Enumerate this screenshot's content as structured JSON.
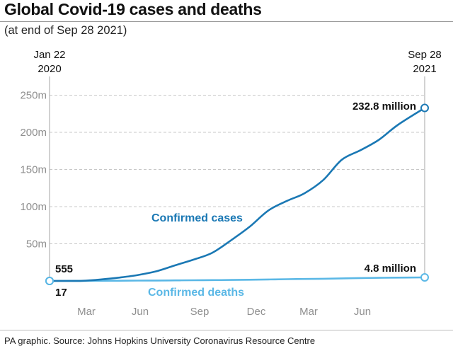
{
  "header": {
    "title": "Global Covid-19 cases and deaths",
    "subtitle": "(at end of Sep 28 2021)"
  },
  "footer": {
    "source": "PA graphic. Source: Johns Hopkins University Coronavirus Resource Centre"
  },
  "colors": {
    "cases": "#1a78b4",
    "deaths": "#5bb8e6",
    "grid": "#c8c8c8",
    "axis_text": "#8f8f8f"
  },
  "chart_data": {
    "type": "line",
    "title": "Global Covid-19 cases and deaths",
    "subtitle": "(at end of Sep 28 2021)",
    "xlabel": "",
    "ylabel": "",
    "x_start": {
      "line1": "Jan 22",
      "line2": "2020"
    },
    "x_end": {
      "line1": "Sep 28",
      "line2": "2021"
    },
    "x_tick_labels": [
      "Mar",
      "Jun",
      "Sep",
      "Dec",
      "Mar",
      "Jun"
    ],
    "y_tick_labels": [
      "50m",
      "100m",
      "150m",
      "200m",
      "250m"
    ],
    "y_ticks": [
      50,
      100,
      150,
      200,
      250
    ],
    "ylim": [
      0,
      250
    ],
    "y_unit": "million",
    "grid": true,
    "x": [
      "2020-01-22",
      "2020-02-15",
      "2020-03-15",
      "2020-04-15",
      "2020-05-15",
      "2020-06-15",
      "2020-07-15",
      "2020-08-15",
      "2020-09-15",
      "2020-10-15",
      "2020-11-15",
      "2020-12-15",
      "2021-01-15",
      "2021-02-15",
      "2021-03-15",
      "2021-04-15",
      "2021-05-15",
      "2021-06-15",
      "2021-07-15",
      "2021-08-15",
      "2021-09-28"
    ],
    "series": [
      {
        "name": "Confirmed cases",
        "values": [
          0,
          0.1,
          0.2,
          2,
          4.5,
          8,
          13,
          21,
          29,
          38,
          55,
          73,
          95,
          108,
          118,
          136,
          163,
          176,
          190,
          210,
          232.8
        ]
      },
      {
        "name": "Confirmed deaths",
        "values": [
          0,
          0.01,
          0.05,
          0.2,
          0.3,
          0.45,
          0.58,
          0.76,
          0.93,
          1.1,
          1.35,
          1.65,
          2.0,
          2.4,
          2.7,
          3.0,
          3.4,
          3.9,
          4.2,
          4.5,
          4.8
        ]
      }
    ],
    "annotations": {
      "cases_start": "555",
      "deaths_start": "17",
      "cases_end": "232.8 million",
      "deaths_end": "4.8 million"
    }
  }
}
